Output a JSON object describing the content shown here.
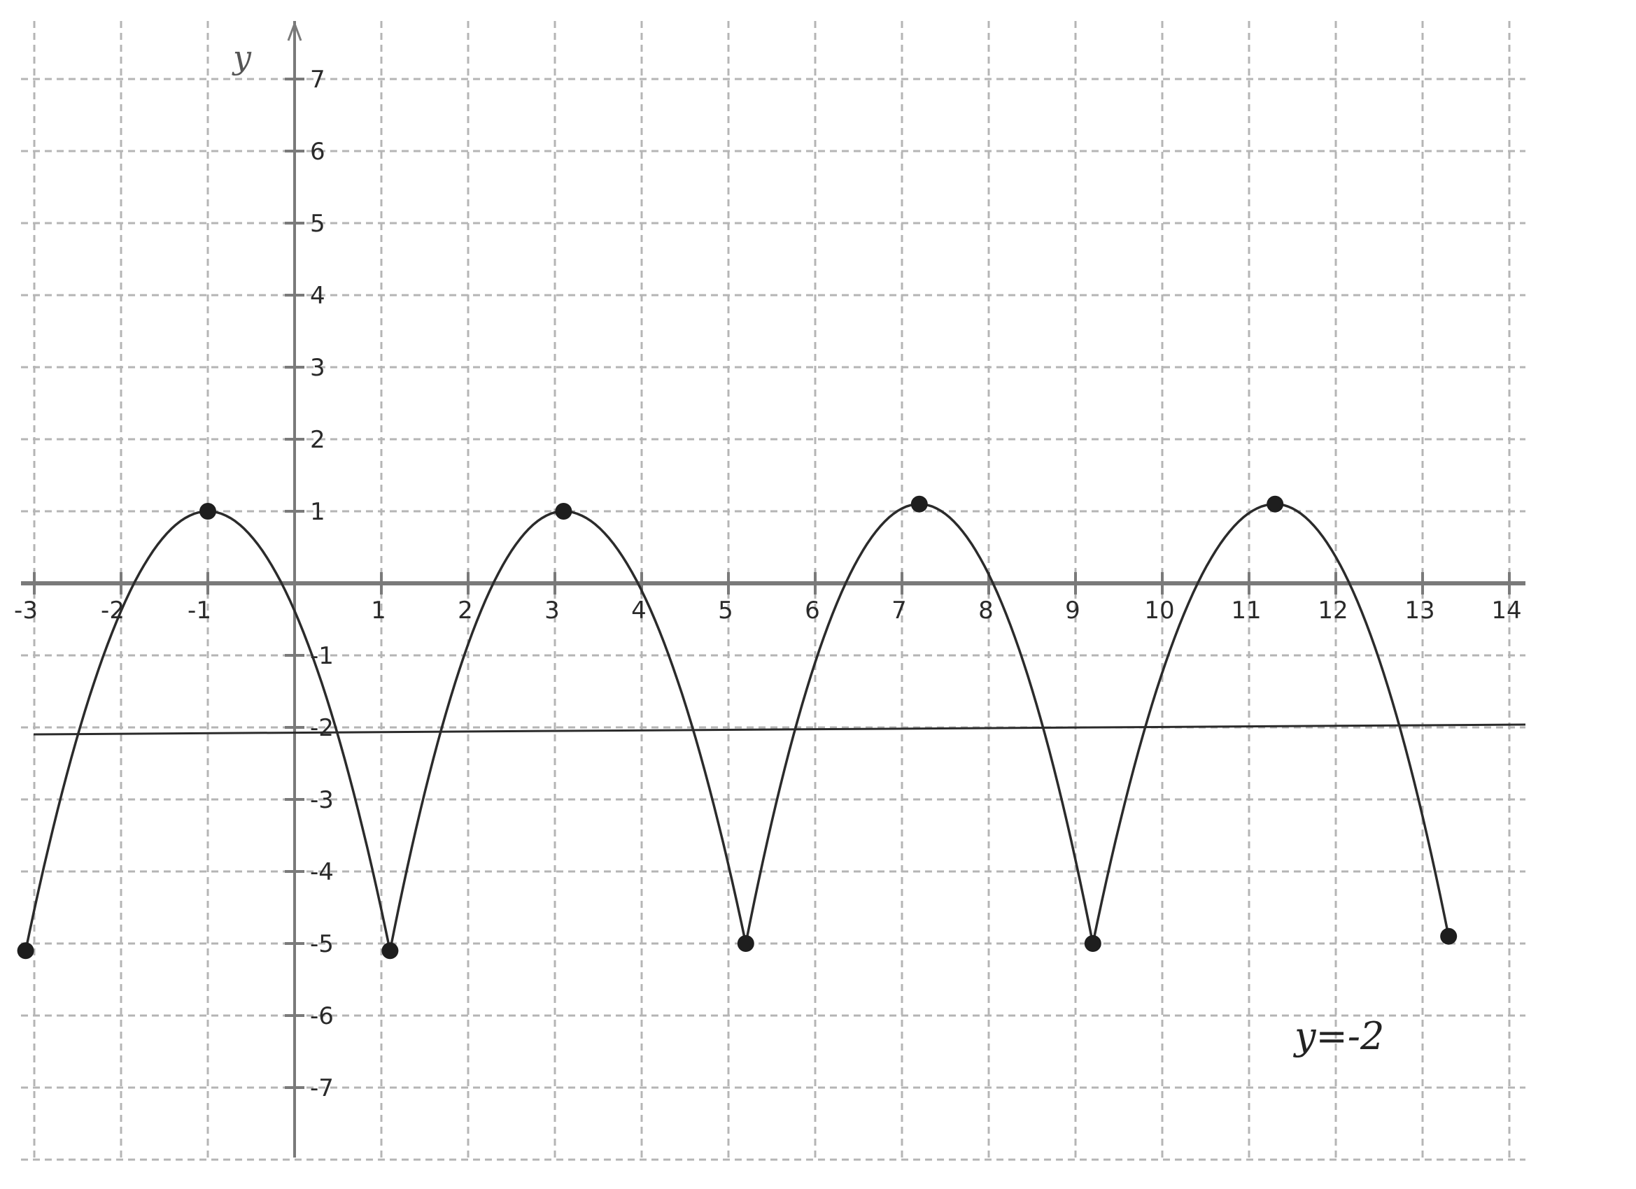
{
  "chart_data": {
    "type": "line",
    "ylabel": "y",
    "xlim": [
      -3.3,
      14.2
    ],
    "ylim": [
      -8.0,
      7.8
    ],
    "grid": true,
    "x_ticks": [
      -3,
      -2,
      -1,
      1,
      2,
      3,
      4,
      5,
      6,
      7,
      8,
      9,
      10,
      11,
      12,
      13,
      14
    ],
    "x_tick_labels": [
      "-3",
      "-2",
      "-1",
      "1",
      "2",
      "3",
      "4",
      "5",
      "6",
      "7",
      "8",
      "9",
      "10",
      "11",
      "12",
      "13",
      "14"
    ],
    "y_ticks": [
      7,
      6,
      5,
      4,
      3,
      2,
      1,
      -1,
      -2,
      -3,
      -4,
      -5,
      -6,
      -7
    ],
    "y_tick_labels": [
      "7",
      "6",
      "5",
      "4",
      "3",
      "2",
      "1",
      "-1",
      "-2",
      "-3",
      "-4",
      "-5",
      "-6",
      "-7"
    ],
    "series": [
      {
        "x": [
          -3.1,
          -1.0,
          1.1,
          3.1,
          5.2,
          7.2,
          9.2,
          11.3,
          13.3
        ],
        "y": [
          -5.1,
          1.0,
          -5.1,
          1.0,
          -5.0,
          1.1,
          -5.0,
          1.1,
          -4.9
        ]
      }
    ],
    "plotted_points": [
      {
        "x": -3.1,
        "y": -5.1
      },
      {
        "x": -1.0,
        "y": 1.0
      },
      {
        "x": 1.1,
        "y": -5.1
      },
      {
        "x": 3.1,
        "y": 1.0
      },
      {
        "x": 5.2,
        "y": -5.0
      },
      {
        "x": 7.2,
        "y": 1.1
      },
      {
        "x": 9.2,
        "y": -5.0
      },
      {
        "x": 11.3,
        "y": 1.1
      },
      {
        "x": 13.3,
        "y": -4.9
      }
    ],
    "asymptote": {
      "y": -2,
      "label": "y=-2"
    },
    "colors": {
      "curve": "#2b2b2b",
      "grid": "#b5b5b5",
      "axis": "#7a7a7a",
      "point": "#1e1e1e"
    }
  }
}
